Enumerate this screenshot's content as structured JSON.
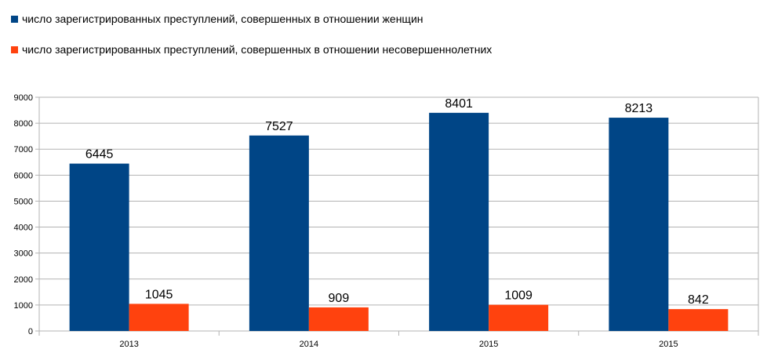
{
  "chart_data": {
    "type": "bar",
    "title": "",
    "xlabel": "",
    "ylabel": "",
    "categories": [
      "2013",
      "2014",
      "2015",
      "2015"
    ],
    "series": [
      {
        "name": "число зарегистрированных преступлений, совершенных в отношении женщин",
        "color": "#004586",
        "values": [
          6445,
          7527,
          8401,
          8213
        ]
      },
      {
        "name": "число зарегистрированных преступлений, совершенных в отношении несовершеннолетних",
        "color": "#ff420e",
        "values": [
          1045,
          909,
          1009,
          842
        ]
      }
    ],
    "ylim": [
      0,
      9000
    ],
    "yticks": [
      0,
      1000,
      2000,
      3000,
      4000,
      5000,
      6000,
      7000,
      8000,
      9000
    ],
    "grid": true,
    "legend_position": "top-left"
  }
}
